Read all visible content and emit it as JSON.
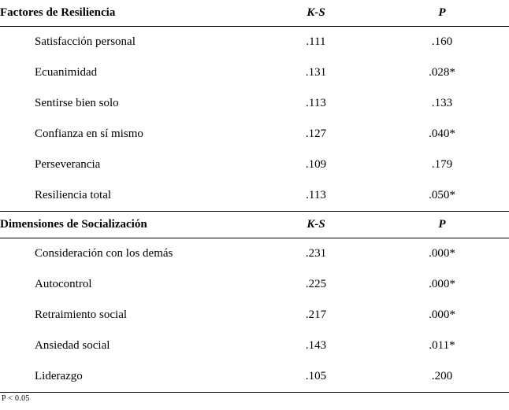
{
  "section1": {
    "title": "Factores de Resiliencia",
    "col_ks": "K-S",
    "col_p": "P",
    "rows": [
      {
        "name": "Satisfacción personal",
        "ks": ".111",
        "p": ".160"
      },
      {
        "name": "Ecuanimidad",
        "ks": ".131",
        "p": ".028*"
      },
      {
        "name": "Sentirse bien solo",
        "ks": ".113",
        "p": ".133"
      },
      {
        "name": "Confianza en sí mismo",
        "ks": ".127",
        "p": ".040*"
      },
      {
        "name": "Perseverancia",
        "ks": ".109",
        "p": ".179"
      },
      {
        "name": "Resiliencia total",
        "ks": ".113",
        "p": ".050*"
      }
    ]
  },
  "section2": {
    "title": "Dimensiones de Socialización",
    "col_ks": "K-S",
    "col_p": "P",
    "rows": [
      {
        "name": "Consideración con los demás",
        "ks": ".231",
        "p": ".000*"
      },
      {
        "name": "Autocontrol",
        "ks": ".225",
        "p": ".000*"
      },
      {
        "name": "Retraimiento social",
        "ks": ".217",
        "p": ".000*"
      },
      {
        "name": "Ansiedad social",
        "ks": ".143",
        "p": ".011*"
      },
      {
        "name": "Liderazgo",
        "ks": ".105",
        "p": ".200"
      }
    ]
  },
  "footnote": "P < 0.05"
}
